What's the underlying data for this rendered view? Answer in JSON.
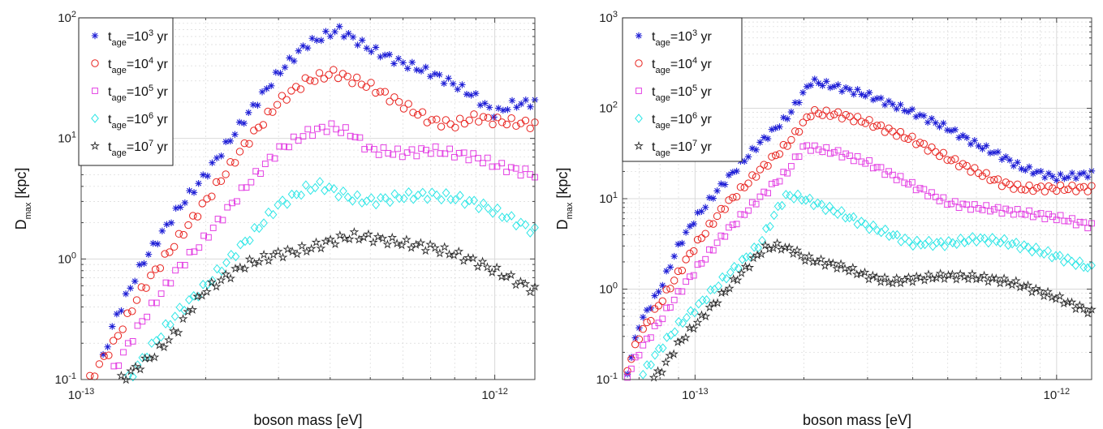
{
  "colors": {
    "t3": "#1f1fd6",
    "t4": "#e8231f",
    "t5": "#e340e3",
    "t6": "#2fe6e6",
    "t7": "#2b2b2b",
    "grid": "#d9d9d9",
    "axis": "#444444"
  },
  "legend_entries": [
    {
      "key": "t3",
      "base": "t",
      "sub": "age",
      "mid": "=10",
      "sup": "3",
      "tail": " yr",
      "marker": "asterisk"
    },
    {
      "key": "t4",
      "base": "t",
      "sub": "age",
      "mid": "=10",
      "sup": "4",
      "tail": " yr",
      "marker": "circle"
    },
    {
      "key": "t5",
      "base": "t",
      "sub": "age",
      "mid": "=10",
      "sup": "5",
      "tail": " yr",
      "marker": "square"
    },
    {
      "key": "t6",
      "base": "t",
      "sub": "age",
      "mid": "=10",
      "sup": "6",
      "tail": " yr",
      "marker": "diamond"
    },
    {
      "key": "t7",
      "base": "t",
      "sub": "age",
      "mid": "=10",
      "sup": "7",
      "tail": " yr",
      "marker": "star"
    }
  ],
  "chart_data": [
    {
      "type": "scatter",
      "xlabel": "boson mass [eV]",
      "ylabel_base": "D",
      "ylabel_sub": "max",
      "ylabel_tail": " [kpc]",
      "xscale": "log",
      "yscale": "log",
      "xlim": [
        1e-13,
        1.25e-12
      ],
      "ylim": [
        0.1,
        100
      ],
      "xticks": [
        {
          "v": 1e-13,
          "b": "10",
          "e": "-13"
        },
        {
          "v": 1e-12,
          "b": "10",
          "e": "-12"
        }
      ],
      "yticks": [
        {
          "v": 0.1,
          "b": "10",
          "e": "-1"
        },
        {
          "v": 1,
          "b": "10",
          "e": "0"
        },
        {
          "v": 10,
          "b": "10",
          "e": "1"
        },
        {
          "v": 100,
          "b": "10",
          "e": "2"
        }
      ],
      "grid": true,
      "legend_position": "top-left",
      "series": [
        {
          "key": "t3",
          "x_start": 1.13e-13,
          "x_end": 1.25e-12,
          "n": 96,
          "knots": [
            [
              1.13e-13,
              0.15
            ],
            [
              1.2e-13,
              0.3
            ],
            [
              1.4e-13,
              0.9
            ],
            [
              1.7e-13,
              2.5
            ],
            [
              2e-13,
              5
            ],
            [
              2.5e-13,
              15
            ],
            [
              3e-13,
              35
            ],
            [
              3.5e-13,
              60
            ],
            [
              4.2e-13,
              80
            ],
            [
              5e-13,
              55
            ],
            [
              6e-13,
              42
            ],
            [
              7e-13,
              35
            ],
            [
              8e-13,
              28
            ],
            [
              9e-13,
              22
            ],
            [
              1e-12,
              16
            ],
            [
              1.1e-12,
              19
            ],
            [
              1.25e-12,
              20
            ]
          ]
        },
        {
          "key": "t4",
          "x_start": 1.05e-13,
          "x_end": 1.25e-12,
          "n": 96,
          "knots": [
            [
              1.05e-13,
              0.1
            ],
            [
              1.2e-13,
              0.2
            ],
            [
              1.4e-13,
              0.55
            ],
            [
              1.7e-13,
              1.4
            ],
            [
              2e-13,
              3
            ],
            [
              2.5e-13,
              9
            ],
            [
              3e-13,
              20
            ],
            [
              3.5e-13,
              30
            ],
            [
              4.1e-13,
              35
            ],
            [
              5e-13,
              27
            ],
            [
              6e-13,
              19
            ],
            [
              7e-13,
              14
            ],
            [
              8e-13,
              13
            ],
            [
              9e-13,
              15
            ],
            [
              1e-12,
              14
            ],
            [
              1.25e-12,
              13
            ]
          ]
        },
        {
          "key": "t5",
          "x_start": 1.2e-13,
          "x_end": 1.25e-12,
          "n": 90,
          "knots": [
            [
              1.2e-13,
              0.12
            ],
            [
              1.4e-13,
              0.3
            ],
            [
              1.7e-13,
              0.8
            ],
            [
              2e-13,
              1.5
            ],
            [
              2.5e-13,
              4
            ],
            [
              3e-13,
              8
            ],
            [
              3.5e-13,
              11
            ],
            [
              4e-13,
              12.5
            ],
            [
              4.5e-13,
              11
            ],
            [
              5e-13,
              8
            ],
            [
              6e-13,
              7.5
            ],
            [
              7e-13,
              8
            ],
            [
              8e-13,
              7.5
            ],
            [
              9e-13,
              7
            ],
            [
              1e-12,
              6
            ],
            [
              1.25e-12,
              5
            ]
          ]
        },
        {
          "key": "t6",
          "x_start": 1.3e-13,
          "x_end": 1.25e-12,
          "n": 88,
          "knots": [
            [
              1.3e-13,
              0.1
            ],
            [
              1.5e-13,
              0.2
            ],
            [
              1.7e-13,
              0.35
            ],
            [
              2e-13,
              0.6
            ],
            [
              2.5e-13,
              1.4
            ],
            [
              3e-13,
              2.8
            ],
            [
              3.5e-13,
              3.8
            ],
            [
              3.8e-13,
              4.1
            ],
            [
              4.5e-13,
              3.2
            ],
            [
              5e-13,
              3.0
            ],
            [
              6e-13,
              3.3
            ],
            [
              7e-13,
              3.4
            ],
            [
              8e-13,
              3.2
            ],
            [
              9e-13,
              2.9
            ],
            [
              1e-12,
              2.5
            ],
            [
              1.25e-12,
              1.7
            ]
          ]
        },
        {
          "key": "t7",
          "x_start": 1.25e-13,
          "x_end": 1.25e-12,
          "n": 88,
          "knots": [
            [
              1.25e-13,
              0.1
            ],
            [
              1.5e-13,
              0.16
            ],
            [
              1.7e-13,
              0.25
            ],
            [
              1.85e-13,
              0.4
            ],
            [
              2e-13,
              0.55
            ],
            [
              2.5e-13,
              0.9
            ],
            [
              3e-13,
              1.1
            ],
            [
              3.5e-13,
              1.2
            ],
            [
              4e-13,
              1.4
            ],
            [
              4.5e-13,
              1.55
            ],
            [
              5e-13,
              1.5
            ],
            [
              6e-13,
              1.35
            ],
            [
              7e-13,
              1.25
            ],
            [
              8e-13,
              1.1
            ],
            [
              9e-13,
              0.95
            ],
            [
              1e-12,
              0.8
            ],
            [
              1.25e-12,
              0.55
            ]
          ]
        }
      ]
    },
    {
      "type": "scatter",
      "xlabel": "boson mass [eV]",
      "ylabel_base": "D",
      "ylabel_sub": "max",
      "ylabel_tail": " [kpc]",
      "xscale": "log",
      "yscale": "log",
      "xlim": [
        6.3e-14,
        1.25e-12
      ],
      "ylim": [
        0.1,
        1000
      ],
      "xticks": [
        {
          "v": 1e-13,
          "b": "10",
          "e": "-13"
        },
        {
          "v": 1e-12,
          "b": "10",
          "e": "-12"
        }
      ],
      "yticks": [
        {
          "v": 0.1,
          "b": "10",
          "e": "-1"
        },
        {
          "v": 1,
          "b": "10",
          "e": "0"
        },
        {
          "v": 10,
          "b": "10",
          "e": "1"
        },
        {
          "v": 100,
          "b": "10",
          "e": "2"
        },
        {
          "v": 1000,
          "b": "10",
          "e": "3"
        }
      ],
      "grid": true,
      "legend_position": "top-left",
      "series": [
        {
          "key": "t3",
          "x_start": 6.5e-14,
          "x_end": 1.25e-12,
          "n": 120,
          "knots": [
            [
              6.5e-14,
              0.12
            ],
            [
              7e-14,
              0.4
            ],
            [
              8e-14,
              1
            ],
            [
              9e-14,
              3
            ],
            [
              1e-13,
              6
            ],
            [
              1.2e-13,
              15
            ],
            [
              1.5e-13,
              40
            ],
            [
              1.8e-13,
              80
            ],
            [
              2.1e-13,
              200
            ],
            [
              2.5e-13,
              170
            ],
            [
              3e-13,
              140
            ],
            [
              4e-13,
              90
            ],
            [
              5e-13,
              60
            ],
            [
              6e-13,
              40
            ],
            [
              7e-13,
              30
            ],
            [
              8e-13,
              22
            ],
            [
              1e-12,
              17
            ],
            [
              1.25e-12,
              19
            ]
          ]
        },
        {
          "key": "t4",
          "x_start": 6.5e-14,
          "x_end": 1.25e-12,
          "n": 120,
          "knots": [
            [
              6.5e-14,
              0.13
            ],
            [
              7e-14,
              0.3
            ],
            [
              8e-14,
              0.7
            ],
            [
              9e-14,
              1.5
            ],
            [
              1e-13,
              3
            ],
            [
              1.2e-13,
              8
            ],
            [
              1.5e-13,
              20
            ],
            [
              1.8e-13,
              40
            ],
            [
              2.1e-13,
              90
            ],
            [
              2.5e-13,
              85
            ],
            [
              3e-13,
              70
            ],
            [
              4e-13,
              45
            ],
            [
              5e-13,
              28
            ],
            [
              6e-13,
              20
            ],
            [
              7e-13,
              15
            ],
            [
              8e-13,
              13
            ],
            [
              1e-12,
              13
            ],
            [
              1.25e-12,
              13
            ]
          ]
        },
        {
          "key": "t5",
          "x_start": 6.5e-14,
          "x_end": 1.25e-12,
          "n": 120,
          "knots": [
            [
              6.5e-14,
              0.11
            ],
            [
              7e-14,
              0.2
            ],
            [
              8e-14,
              0.45
            ],
            [
              9e-14,
              0.9
            ],
            [
              1e-13,
              1.6
            ],
            [
              1.2e-13,
              4
            ],
            [
              1.5e-13,
              10
            ],
            [
              1.8e-13,
              20
            ],
            [
              2e-13,
              38
            ],
            [
              2.5e-13,
              32
            ],
            [
              3e-13,
              25
            ],
            [
              4e-13,
              14
            ],
            [
              5e-13,
              9
            ],
            [
              6e-13,
              8
            ],
            [
              7e-13,
              7.5
            ],
            [
              8e-13,
              7
            ],
            [
              1e-12,
              6.2
            ],
            [
              1.25e-12,
              5
            ]
          ]
        },
        {
          "key": "t6",
          "x_start": 7e-14,
          "x_end": 1.25e-12,
          "n": 115,
          "knots": [
            [
              7e-14,
              0.1
            ],
            [
              8e-14,
              0.22
            ],
            [
              9e-14,
              0.4
            ],
            [
              1e-13,
              0.6
            ],
            [
              1.2e-13,
              1.3
            ],
            [
              1.5e-13,
              3
            ],
            [
              1.7e-13,
              8
            ],
            [
              1.8e-13,
              11
            ],
            [
              2e-13,
              10
            ],
            [
              2.5e-13,
              7
            ],
            [
              3e-13,
              5
            ],
            [
              3.5e-13,
              4
            ],
            [
              4e-13,
              3.2
            ],
            [
              5e-13,
              3.2
            ],
            [
              6e-13,
              3.6
            ],
            [
              7e-13,
              3.4
            ],
            [
              8e-13,
              3
            ],
            [
              1e-12,
              2.3
            ],
            [
              1.25e-12,
              1.7
            ]
          ]
        },
        {
          "key": "t7",
          "x_start": 7.5e-14,
          "x_end": 1.25e-12,
          "n": 112,
          "knots": [
            [
              7.5e-14,
              0.1
            ],
            [
              8e-14,
              0.12
            ],
            [
              9e-14,
              0.25
            ],
            [
              1e-13,
              0.4
            ],
            [
              1.2e-13,
              0.9
            ],
            [
              1.4e-13,
              1.8
            ],
            [
              1.55e-13,
              2.8
            ],
            [
              1.7e-13,
              3.0
            ],
            [
              1.9e-13,
              2.6
            ],
            [
              2e-13,
              2.2
            ],
            [
              2.5e-13,
              1.8
            ],
            [
              3e-13,
              1.4
            ],
            [
              3.5e-13,
              1.2
            ],
            [
              4e-13,
              1.3
            ],
            [
              5e-13,
              1.4
            ],
            [
              6e-13,
              1.35
            ],
            [
              7e-13,
              1.25
            ],
            [
              8e-13,
              1.1
            ],
            [
              1e-12,
              0.8
            ],
            [
              1.25e-12,
              0.55
            ]
          ]
        }
      ]
    }
  ]
}
